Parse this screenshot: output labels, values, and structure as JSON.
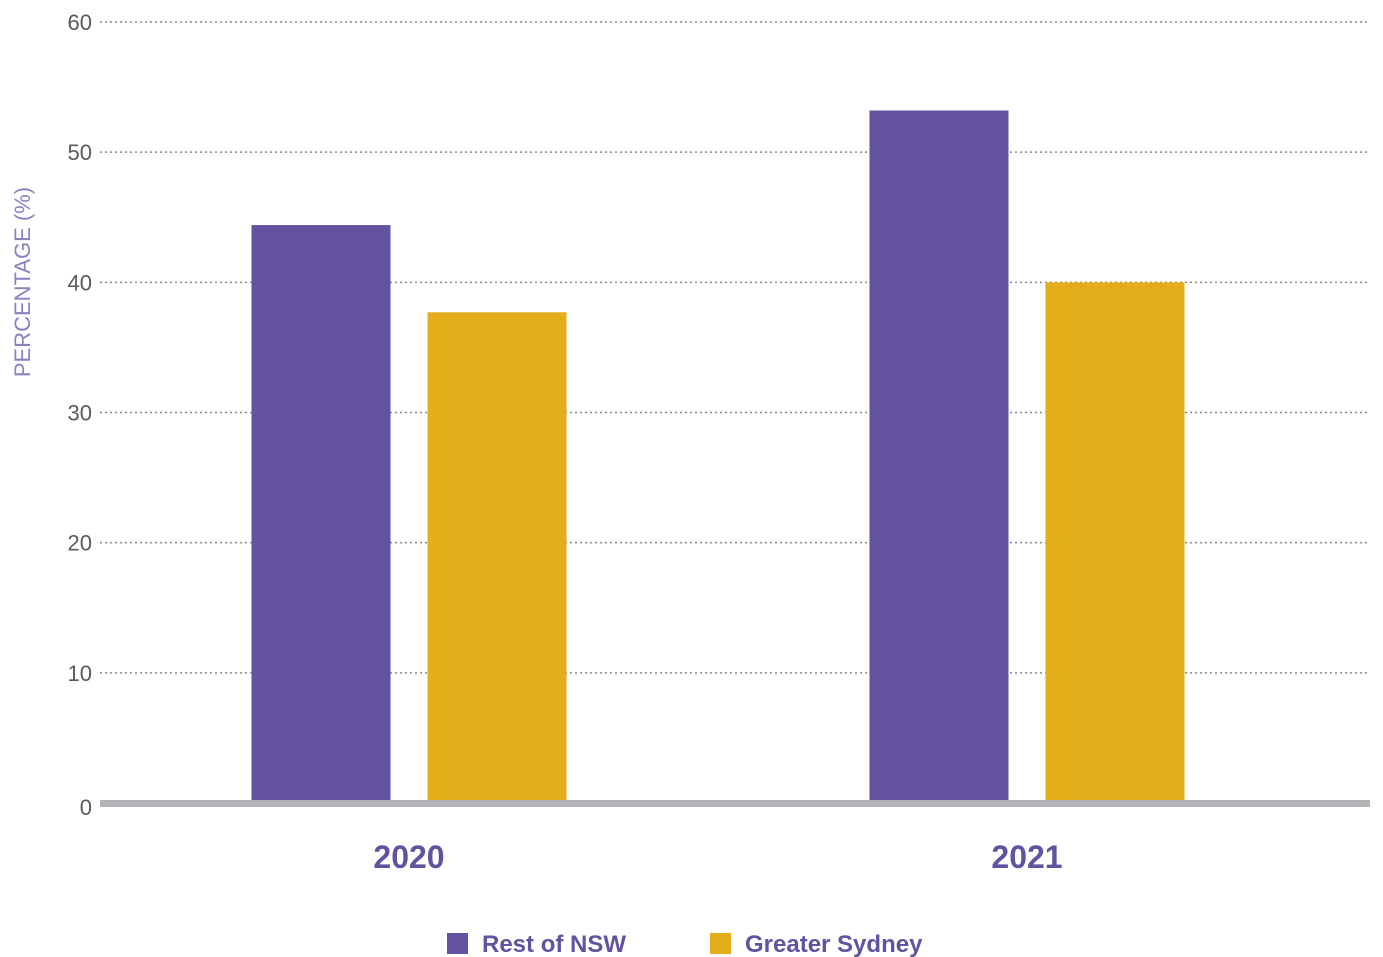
{
  "chart_data": {
    "type": "bar",
    "title": "",
    "xlabel": "",
    "ylabel": "PERCENTAGE (%)",
    "ylim": [
      0,
      60
    ],
    "yticks": [
      0,
      10,
      20,
      30,
      40,
      50,
      60
    ],
    "grid": true,
    "legend_position": "bottom",
    "categories": [
      "2020",
      "2021"
    ],
    "series": [
      {
        "name": "Rest of NSW",
        "color": "#6352a0",
        "values": [
          44.4,
          53.2
        ]
      },
      {
        "name": "Greater Sydney",
        "color": "#e3ad1c",
        "values": [
          37.7,
          40.0
        ]
      }
    ]
  },
  "colors": {
    "axis": "#b1b3b6",
    "grid": "#888888",
    "tick_text": "#5a5a5a",
    "label_purple": "#6352a0",
    "ylabel_purple": "#8b80c0"
  }
}
